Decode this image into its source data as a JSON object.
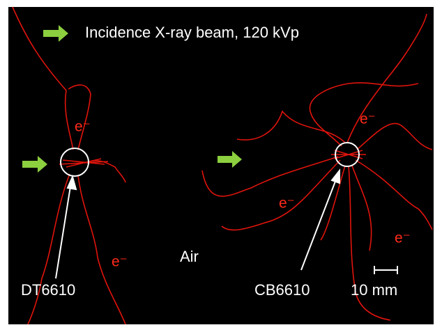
{
  "legend": {
    "text": "Incidence X-ray beam, 120 kVp"
  },
  "electron_labels": [
    "e⁻",
    "e⁻",
    "e⁻",
    "e⁻",
    "e⁻"
  ],
  "samples": [
    {
      "label": "DT6610"
    },
    {
      "label": "CB6610"
    }
  ],
  "medium": "Air",
  "scale_bar": "10 mm"
}
